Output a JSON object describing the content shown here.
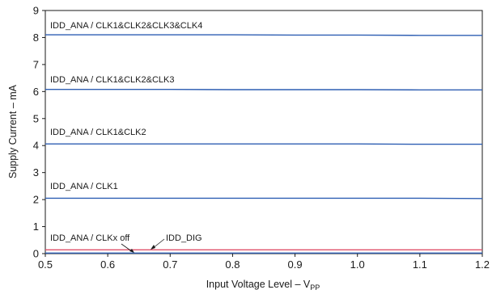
{
  "chart_data": {
    "type": "line",
    "title": "",
    "xlabel": "Input Voltage Level – V",
    "xlabel_subscript": "PP",
    "ylabel": "Supply Current – mA",
    "xlim": [
      0.5,
      1.2
    ],
    "ylim": [
      0,
      9
    ],
    "x_ticks": [
      "0.5",
      "0.6",
      "0.7",
      "0.8",
      "0.9",
      "1.0",
      "1.1",
      "1.2"
    ],
    "y_ticks": [
      "0",
      "1",
      "2",
      "3",
      "4",
      "5",
      "6",
      "7",
      "8",
      "9"
    ],
    "grid": false,
    "x": [
      0.5,
      0.6,
      0.7,
      0.8,
      0.9,
      1.0,
      1.1,
      1.2
    ],
    "series": [
      {
        "name": "IDD_ANA / CLK1&CLK2&CLK3&CLK4",
        "color": "#2f5fb3",
        "values": [
          8.1,
          8.1,
          8.1,
          8.1,
          8.09,
          8.09,
          8.08,
          8.08
        ]
      },
      {
        "name": "IDD_ANA / CLK1&CLK2&CLK3",
        "color": "#2f5fb3",
        "values": [
          6.08,
          6.08,
          6.08,
          6.07,
          6.07,
          6.07,
          6.06,
          6.06
        ]
      },
      {
        "name": "IDD_ANA / CLK1&CLK2",
        "color": "#2f5fb3",
        "values": [
          4.06,
          4.06,
          4.06,
          4.06,
          4.06,
          4.06,
          4.05,
          4.05
        ]
      },
      {
        "name": "IDD_ANA / CLK1",
        "color": "#2f5fb3",
        "values": [
          2.05,
          2.05,
          2.05,
          2.05,
          2.05,
          2.05,
          2.05,
          2.04
        ]
      },
      {
        "name": "IDD_ANA / CLKx off",
        "color": "#2f5fb3",
        "values": [
          0.02,
          0.02,
          0.02,
          0.02,
          0.02,
          0.02,
          0.02,
          0.02
        ]
      },
      {
        "name": "IDD_DIG",
        "color": "#e0506a",
        "values": [
          0.14,
          0.14,
          0.14,
          0.14,
          0.14,
          0.14,
          0.14,
          0.14
        ]
      }
    ]
  }
}
